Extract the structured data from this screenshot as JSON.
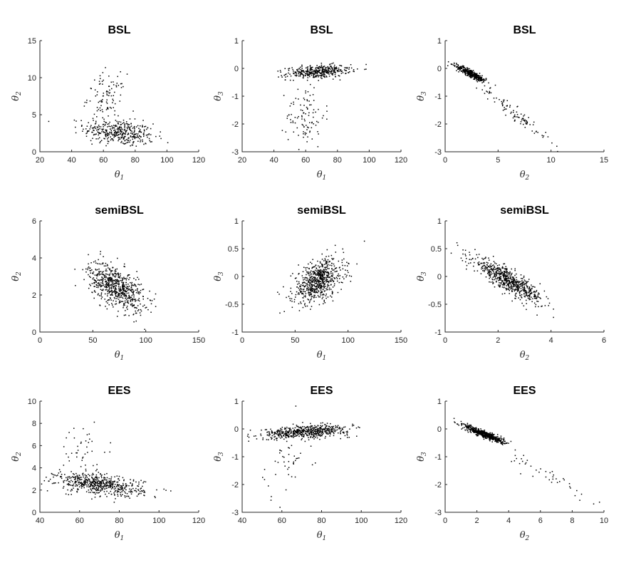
{
  "chart_data": [
    {
      "type": "scatter",
      "title": "BSL",
      "xlabel": "θ1",
      "ylabel": "θ2",
      "xlim": [
        20,
        120
      ],
      "ylim": [
        0,
        15
      ],
      "xticks": [
        20,
        40,
        60,
        80,
        100,
        120
      ],
      "yticks": [
        0,
        5,
        10,
        15
      ],
      "clusters": [
        {
          "n": 380,
          "cx": 70,
          "cy": 2.6,
          "sx": 11,
          "sy": 0.9,
          "rho": -0.3
        },
        {
          "n": 100,
          "cx": 62,
          "cy": 7.3,
          "sx": 6,
          "sy": 1.6,
          "rho": 0
        }
      ]
    },
    {
      "type": "scatter",
      "title": "BSL",
      "xlabel": "θ1",
      "ylabel": "θ3",
      "xlim": [
        20,
        120
      ],
      "ylim": [
        -3,
        1
      ],
      "xticks": [
        20,
        40,
        60,
        80,
        100,
        120
      ],
      "yticks": [
        -3,
        -2,
        -1,
        0,
        1
      ],
      "clusters": [
        {
          "n": 380,
          "cx": 68,
          "cy": -0.12,
          "sx": 10,
          "sy": 0.12,
          "rho": 0.3
        },
        {
          "n": 100,
          "cx": 60,
          "cy": -1.7,
          "sx": 6,
          "sy": 0.55,
          "rho": 0
        }
      ]
    },
    {
      "type": "scatter",
      "title": "BSL",
      "xlabel": "θ2",
      "ylabel": "θ3",
      "xlim": [
        0,
        15
      ],
      "ylim": [
        -3,
        1
      ],
      "xticks": [
        0,
        5,
        10,
        15
      ],
      "yticks": [
        -3,
        -2,
        -1,
        0,
        1
      ],
      "clusters": [
        {
          "n": 380,
          "cx": 2.5,
          "cy": -0.2,
          "sx": 0.7,
          "sy": 0.15,
          "rho": -0.9
        },
        {
          "n": 100,
          "cx": 6.5,
          "cy": -1.6,
          "sx": 1.8,
          "sy": 0.55,
          "rho": -0.97
        }
      ]
    },
    {
      "type": "scatter",
      "title": "semiBSL",
      "xlabel": "θ1",
      "ylabel": "θ2",
      "xlim": [
        0,
        150
      ],
      "ylim": [
        0,
        6
      ],
      "xticks": [
        0,
        50,
        100,
        150
      ],
      "yticks": [
        0,
        2,
        4,
        6
      ],
      "clusters": [
        {
          "n": 650,
          "cx": 72,
          "cy": 2.45,
          "sx": 13,
          "sy": 0.65,
          "rho": -0.55
        }
      ]
    },
    {
      "type": "scatter",
      "title": "semiBSL",
      "xlabel": "θ1",
      "ylabel": "θ3",
      "xlim": [
        0,
        150
      ],
      "ylim": [
        -1,
        1
      ],
      "xticks": [
        0,
        50,
        100,
        150
      ],
      "yticks": [
        -1,
        -0.5,
        0,
        0.5,
        1
      ],
      "clusters": [
        {
          "n": 650,
          "cx": 72,
          "cy": -0.08,
          "sx": 12,
          "sy": 0.2,
          "rho": 0.45
        }
      ]
    },
    {
      "type": "scatter",
      "title": "semiBSL",
      "xlabel": "θ2",
      "ylabel": "θ3",
      "xlim": [
        0,
        6
      ],
      "ylim": [
        -1,
        1
      ],
      "xticks": [
        0,
        2,
        4,
        6
      ],
      "yticks": [
        -1,
        -0.5,
        0,
        0.5,
        1
      ],
      "clusters": [
        {
          "n": 650,
          "cx": 2.4,
          "cy": -0.08,
          "sx": 0.65,
          "sy": 0.2,
          "rho": -0.88
        }
      ]
    },
    {
      "type": "scatter",
      "title": "EES",
      "xlabel": "θ1",
      "ylabel": "θ2",
      "xlim": [
        40,
        120
      ],
      "ylim": [
        0,
        10
      ],
      "xticks": [
        40,
        60,
        80,
        100,
        120
      ],
      "yticks": [
        0,
        2,
        4,
        6,
        8,
        10
      ],
      "clusters": [
        {
          "n": 560,
          "cx": 70,
          "cy": 2.5,
          "sx": 11,
          "sy": 0.5,
          "rho": -0.45
        },
        {
          "n": 45,
          "cx": 62,
          "cy": 5.2,
          "sx": 7,
          "sy": 1.4,
          "rho": 0
        }
      ]
    },
    {
      "type": "scatter",
      "title": "EES",
      "xlabel": "θ1",
      "ylabel": "θ3",
      "xlim": [
        40,
        120
      ],
      "ylim": [
        -3,
        1
      ],
      "xticks": [
        40,
        60,
        80,
        100,
        120
      ],
      "yticks": [
        -3,
        -2,
        -1,
        0,
        1
      ],
      "clusters": [
        {
          "n": 560,
          "cx": 72,
          "cy": -0.1,
          "sx": 11,
          "sy": 0.12,
          "rho": 0.4
        },
        {
          "n": 45,
          "cx": 62,
          "cy": -1.2,
          "sx": 7,
          "sy": 0.6,
          "rho": 0.3
        }
      ]
    },
    {
      "type": "scatter",
      "title": "EES",
      "xlabel": "θ2",
      "ylabel": "θ3",
      "xlim": [
        0,
        10
      ],
      "ylim": [
        -3,
        1
      ],
      "xticks": [
        0,
        2,
        4,
        6,
        8,
        10
      ],
      "yticks": [
        -3,
        -2,
        -1,
        0,
        1
      ],
      "clusters": [
        {
          "n": 560,
          "cx": 2.5,
          "cy": -0.2,
          "sx": 0.6,
          "sy": 0.15,
          "rho": -0.9
        },
        {
          "n": 45,
          "cx": 6,
          "cy": -1.5,
          "sx": 1.8,
          "sy": 0.6,
          "rho": -0.97
        }
      ]
    }
  ]
}
